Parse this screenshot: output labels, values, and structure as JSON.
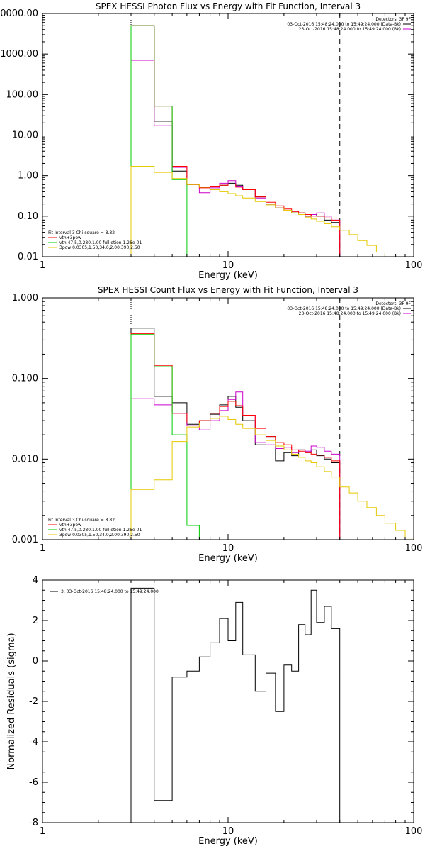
{
  "chart_data": [
    {
      "type": "line",
      "title": "SPEX HESSI Photon Flux vs Energy with Fit Function, Interval 3",
      "xlabel": "Energy (keV)",
      "ylabel": "",
      "xscale": "log",
      "yscale": "log",
      "xlim": [
        1,
        100
      ],
      "ylim": [
        0.01,
        10000
      ],
      "xticks": [
        "1",
        "10",
        "100"
      ],
      "yticks": [
        "0.01",
        "0.10",
        "1.00",
        "10.00",
        "100.00",
        "1000.00",
        "0000.00"
      ],
      "legend_top": [
        "Detectors: 3F 9F",
        "03-Oct-2016 15:48:24.000 to 15:49:24.000 (Data-Bk)",
        "23-Oct-2016 15:48:24.000 to 15:49:24.000 (Bk)"
      ],
      "legend_bottom": [
        "Fit Interval 3   Chi-square = 8.82",
        "vth+3pow",
        "vth 47.5,0.280,1.00  full otion 1.26e-01",
        "3pow 0.0305,1.50,34.0,2.00,390,2.50"
      ],
      "edges": [
        3.0,
        4.0,
        5.0,
        6.0,
        7.0,
        8.0,
        9.0,
        10.0,
        11.0,
        12.0,
        14.0,
        16.0,
        18.0,
        20.0,
        22.0,
        24.0,
        26.0,
        28.0,
        30.0,
        33.0,
        36.0,
        40.0,
        45.0,
        50.0,
        56.0,
        63.0,
        70.0,
        80.0
      ],
      "dashed_x": 40,
      "dotted_x": 3,
      "series": [
        {
          "color": "#000000",
          "values": [
            5000,
            22,
            1.3,
            0.6,
            0.52,
            0.55,
            0.58,
            0.65,
            0.58,
            0.45,
            0.3,
            0.2,
            0.16,
            0.14,
            0.12,
            0.12,
            0.1,
            0.11,
            0.1,
            0.08,
            0.07
          ]
        },
        {
          "color": "#cc00cc",
          "values": [
            700,
            17,
            1.6,
            0.6,
            0.38,
            0.5,
            0.65,
            0.75,
            0.55,
            0.45,
            0.28,
            0.2,
            0.16,
            0.14,
            0.13,
            0.11,
            0.1,
            0.11,
            0.12,
            0.1,
            0.08
          ]
        },
        {
          "color": "#ff0000",
          "values": [
            5000,
            52,
            1.7,
            0.6,
            0.5,
            0.55,
            0.58,
            0.62,
            0.52,
            0.45,
            0.3,
            0.22,
            0.18,
            0.15,
            0.13,
            0.12,
            0.11,
            0.1,
            0.1,
            0.09,
            0.08
          ]
        },
        {
          "color": "#00cc00",
          "values": [
            5000,
            52,
            0.8,
            0.005,
            0.01
          ]
        },
        {
          "color": "#e6c800",
          "values": [
            1.7,
            1.2,
            0.85,
            0.6,
            0.52,
            0.45,
            0.4,
            0.36,
            0.32,
            0.28,
            0.23,
            0.19,
            0.16,
            0.14,
            0.12,
            0.11,
            0.095,
            0.085,
            0.075,
            0.065,
            0.055,
            0.045,
            0.035,
            0.025,
            0.019,
            0.013,
            0.01
          ]
        }
      ]
    },
    {
      "type": "line",
      "title": "SPEX HESSI Count Flux vs Energy with Fit Function, Interval 3",
      "xlabel": "Energy (keV)",
      "ylabel": "",
      "xscale": "log",
      "yscale": "log",
      "xlim": [
        1,
        100
      ],
      "ylim": [
        0.001,
        1
      ],
      "xticks": [
        "1",
        "10",
        "100"
      ],
      "yticks": [
        "0.001",
        "0.010",
        "0.100",
        "1.000"
      ],
      "legend_top": [
        "Detectors: 3F 9F",
        "03-Oct-2016 15:48:24.000 to 15:49:24.000 (Data-Bk)",
        "23-Oct-2016 15:48:24.000 to 15:49:24.000 (Bk)"
      ],
      "legend_bottom": [
        "Fit Interval 3   Chi-square = 8.82",
        "vth+3pow",
        "vth 47.5,0.280,1.00  full otion 1.26e-01",
        "3pow 0.0305,1.50,34.0,2.00,390,2.50"
      ],
      "edges": [
        3.0,
        4.0,
        5.0,
        6.0,
        7.0,
        8.0,
        9.0,
        10.0,
        11.0,
        12.0,
        14.0,
        16.0,
        18.0,
        20.0,
        22.0,
        24.0,
        26.0,
        28.0,
        30.0,
        33.0,
        36.0,
        40.0,
        45.0,
        50.0,
        56.0,
        63.0,
        70.0,
        80.0,
        90.0,
        100.0
      ],
      "dashed_x": 40,
      "dotted_x": 3,
      "series": [
        {
          "color": "#000000",
          "values": [
            0.42,
            0.06,
            0.05,
            0.027,
            0.03,
            0.036,
            0.047,
            0.06,
            0.044,
            0.03,
            0.015,
            0.019,
            0.0095,
            0.012,
            0.011,
            0.013,
            0.012,
            0.013,
            0.011,
            0.01,
            0.009
          ]
        },
        {
          "color": "#cc00cc",
          "values": [
            0.056,
            0.047,
            0.037,
            0.026,
            0.023,
            0.03,
            0.04,
            0.055,
            0.068,
            0.035,
            0.016,
            0.015,
            0.0135,
            0.014,
            0.012,
            0.013,
            0.0125,
            0.0145,
            0.014,
            0.0125,
            0.0115
          ]
        },
        {
          "color": "#ff0000",
          "values": [
            0.36,
            0.145,
            0.037,
            0.028,
            0.03,
            0.037,
            0.045,
            0.052,
            0.046,
            0.035,
            0.024,
            0.019,
            0.016,
            0.015,
            0.013,
            0.0125,
            0.012,
            0.0115,
            0.0112,
            0.0105,
            0.0095
          ]
        },
        {
          "color": "#00cc00",
          "values": [
            0.35,
            0.14,
            0.02,
            0.0015,
            0.0006
          ]
        },
        {
          "color": "#e6c800",
          "values": [
            0.0042,
            0.0055,
            0.0165,
            0.025,
            0.028,
            0.032,
            0.034,
            0.031,
            0.027,
            0.024,
            0.02,
            0.017,
            0.0145,
            0.013,
            0.0115,
            0.0105,
            0.0095,
            0.009,
            0.008,
            0.007,
            0.006,
            0.0045,
            0.0038,
            0.003,
            0.0025,
            0.002,
            0.0016,
            0.0013,
            0.00105
          ]
        }
      ]
    },
    {
      "type": "line",
      "title": "",
      "xlabel": "Energy (keV)",
      "ylabel": "Normalized Residuals (sigma)",
      "xscale": "log",
      "yscale": "linear",
      "xlim": [
        1,
        100
      ],
      "ylim": [
        -8,
        4
      ],
      "xticks": [
        "1",
        "10",
        "100"
      ],
      "yticks": [
        "-8",
        "-6",
        "-4",
        "-2",
        "0",
        "2",
        "4"
      ],
      "legend_top": [
        "3, 03-Oct-2016 15:48:24.000 to 15:49:24.000"
      ],
      "legend_bottom": [],
      "edges": [
        3.0,
        4.0,
        5.0,
        6.0,
        7.0,
        8.0,
        9.0,
        10.0,
        11.0,
        12.0,
        14.0,
        16.0,
        18.0,
        20.0,
        22.0,
        24.0,
        26.0,
        28.0,
        30.0,
        33.0,
        36.0,
        40.0
      ],
      "dashed_x": null,
      "dotted_x": null,
      "series": [
        {
          "color": "#000000",
          "values": [
            3.6,
            -6.9,
            -0.8,
            -0.5,
            0.2,
            0.9,
            2.1,
            1.0,
            2.9,
            0.3,
            -1.5,
            -0.6,
            -2.5,
            -0.2,
            -0.5,
            1.8,
            1.3,
            3.5,
            1.9,
            2.7,
            1.6
          ]
        }
      ]
    }
  ]
}
